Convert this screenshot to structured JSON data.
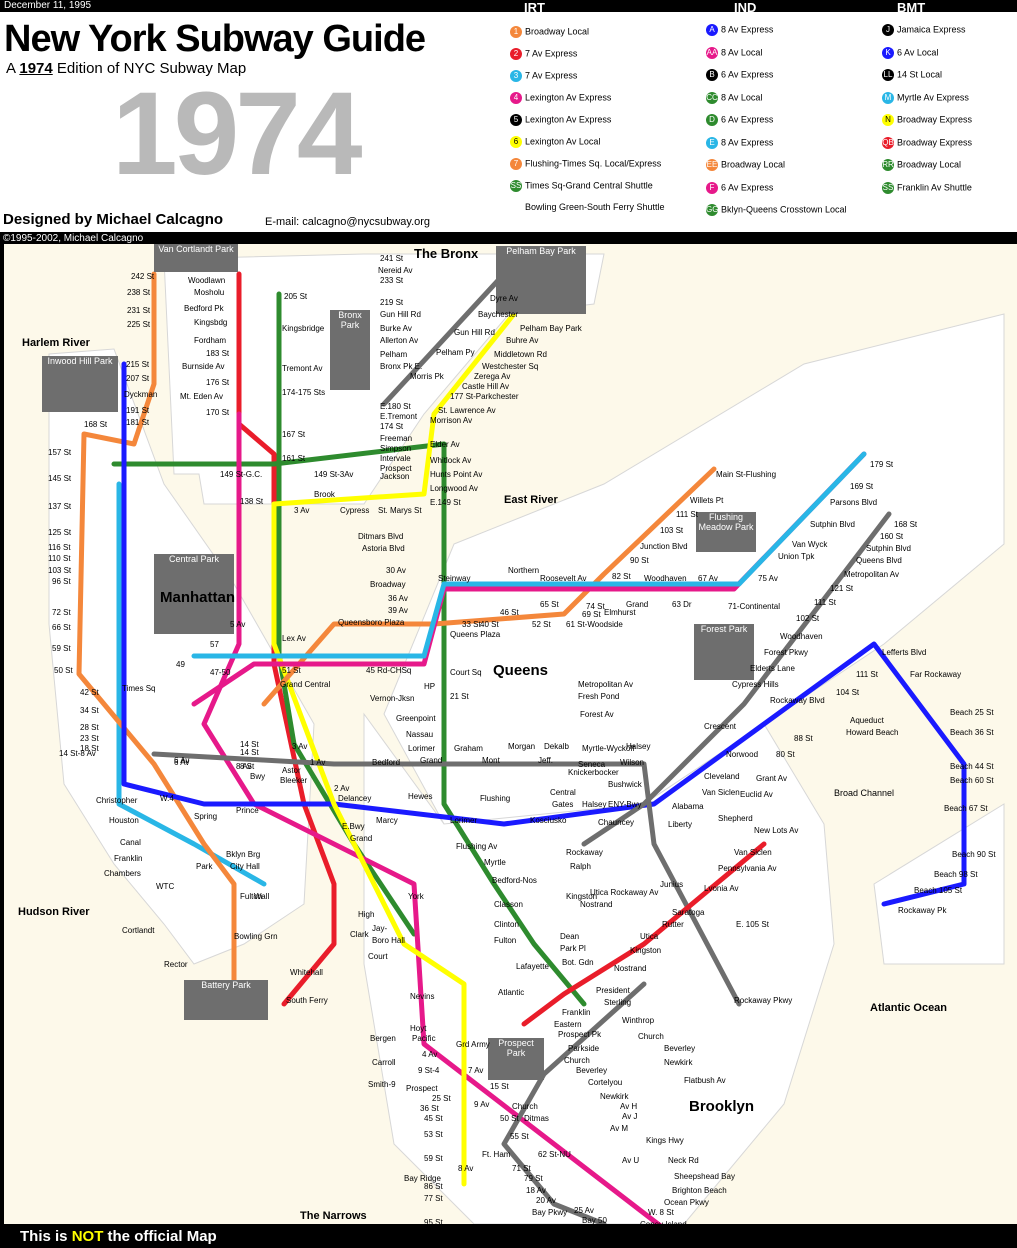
{
  "header": {
    "date": "December 11, 1995",
    "title": "New York Subway Guide",
    "subtitle_prefix": "A ",
    "subtitle_year": "1974",
    "subtitle_suffix": " Edition of NYC Subway Map",
    "big_year": "1974",
    "designed_by": "Designed by Michael Calcagno",
    "email": "E-mail: calcagno@nycsubway.org",
    "copyright": "©1995-2002, Michael Calcagno"
  },
  "legend": {
    "irt_head": "IRT",
    "ind_head": "IND",
    "bmt_head": "BMT",
    "irt": [
      {
        "badge": "1",
        "label": "Broadway Local",
        "color": "#f4873b"
      },
      {
        "badge": "2",
        "label": "7 Av Express",
        "color": "#e91d2a"
      },
      {
        "badge": "3",
        "label": "7 Av Express",
        "color": "#29b6e6"
      },
      {
        "badge": "4",
        "label": "Lexington Av Express",
        "color": "#e6198a"
      },
      {
        "badge": "5",
        "label": "Lexington Av Express",
        "color": "#000000"
      },
      {
        "badge": "6",
        "label": "Lexington Av Local",
        "color": "#ffff00"
      },
      {
        "badge": "7",
        "label": "Flushing-Times Sq. Local/Express",
        "color": "#f4873b"
      },
      {
        "badge": "SS",
        "label": "Times Sq-Grand Central Shuttle",
        "color": "#2e8b2e"
      },
      {
        "badge": "",
        "label": "Bowling Green-South Ferry Shuttle",
        "color": ""
      }
    ],
    "ind": [
      {
        "badge": "A",
        "label": "8 Av Express",
        "color": "#1a1aff"
      },
      {
        "badge": "AA",
        "label": "8 Av Local",
        "color": "#e6198a"
      },
      {
        "badge": "B",
        "label": "6 Av Express",
        "color": "#000000"
      },
      {
        "badge": "CC",
        "label": "8 Av Local",
        "color": "#2e8b2e"
      },
      {
        "badge": "D",
        "label": "6 Av Express",
        "color": "#2e8b2e"
      },
      {
        "badge": "E",
        "label": "8 Av Express",
        "color": "#29b6e6"
      },
      {
        "badge": "EE",
        "label": "Broadway Local",
        "color": "#f4873b"
      },
      {
        "badge": "F",
        "label": "6 Av Express",
        "color": "#e6198a"
      },
      {
        "badge": "GG",
        "label": "Bklyn-Queens Crosstown Local",
        "color": "#2e8b2e"
      }
    ],
    "bmt": [
      {
        "badge": "J",
        "label": "Jamaica Express",
        "color": "#000000"
      },
      {
        "badge": "K",
        "label": "6 Av Local",
        "color": "#1a1aff"
      },
      {
        "badge": "LL",
        "label": "14 St Local",
        "color": "#000000"
      },
      {
        "badge": "M",
        "label": "Myrtle Av Express",
        "color": "#29b6e6"
      },
      {
        "badge": "N",
        "label": "Broadway Express",
        "color": "#ffff00"
      },
      {
        "badge": "QB",
        "label": "Broadway Express",
        "color": "#e91d2a"
      },
      {
        "badge": "RR",
        "label": "Broadway Local",
        "color": "#2e8b2e"
      },
      {
        "badge": "SS",
        "label": "Franklin Av Shuttle",
        "color": "#2e8b2e"
      }
    ]
  },
  "map": {
    "regions": {
      "bronx": "The Bronx",
      "manhattan": "Manhattan",
      "queens": "Queens",
      "brooklyn": "Brooklyn"
    },
    "waters": {
      "harlem": "Harlem River",
      "hudson": "Hudson River",
      "east": "East River",
      "atlantic": "Atlantic Ocean",
      "narrows": "The Narrows",
      "broad_channel": "Broad Channel"
    },
    "parks": {
      "van_cortlandt": "Van Cortlandt Park",
      "pelham_bay": "Pelham Bay Park",
      "bronx": "Bronx Park",
      "inwood": "Inwood Hill Park",
      "central": "Central Park",
      "flushing_meadow": "Flushing Meadow Park",
      "forest": "Forest Park",
      "prospect": "Prospect Park",
      "battery": "Battery Park"
    },
    "stations": {
      "s242": "242 St",
      "s238": "238 St",
      "s231": "231 St",
      "s225": "225 St",
      "s215": "215 St",
      "s207": "207 St",
      "dyckman": "Dyckman",
      "s191": "191 St",
      "s181": "181 St",
      "s168": "168 St",
      "s157": "157 St",
      "s145": "145 St",
      "s137": "137 St",
      "s125": "125 St",
      "s116": "116 St",
      "s110": "110 St",
      "s103": "103 St",
      "s96": "96 St",
      "s86": "86 St",
      "s79": "79 St",
      "s72": "72 St",
      "s66": "66 St",
      "s59": "59 St",
      "s50": "50 St",
      "s42": "42 St",
      "s34": "34 St",
      "s28": "28 St",
      "s23": "23 St",
      "s18": "18 St",
      "s14_8": "14 St-8 Av",
      "christopher": "Christopher",
      "houston": "Houston",
      "canal": "Canal",
      "franklin": "Franklin",
      "chambers": "Chambers",
      "cortlandt": "Cortlandt",
      "rector": "Rector",
      "south_ferry": "South Ferry",
      "woodlawn": "Woodlawn",
      "mosholu": "Mosholu",
      "bedford_pk": "Bedford Pk",
      "kingsbdg": "Kingsbdg",
      "fordham": "Fordham",
      "s183": "183 St",
      "burnside": "Burnside Av",
      "s176": "176 St",
      "mt_eden": "Mt. Eden Av",
      "s170": "170 St",
      "s161": "161 St",
      "s149gc": "149 St-G.C.",
      "s138": "138 St",
      "s205": "205 St",
      "kingsbridge": "Kingsbridge",
      "tremont": "Tremont Av",
      "s174_175": "174-175 Sts",
      "s167": "167 St",
      "s241": "241 St",
      "nereid": "Nereid Av",
      "s233": "233 St",
      "s219": "219 St",
      "gun_hill": "Gun Hill Rd",
      "burke": "Burke Av",
      "allerton": "Allerton Av",
      "pelham": "Pelham",
      "bronx_pk_e": "Bronx Pk E.",
      "e180": "E.180 St",
      "e_tremont": "E.Tremont",
      "s174": "174 St",
      "freeman": "Freeman",
      "simpson": "Simpson",
      "intervale": "Intervale",
      "prospect_bx": "Prospect",
      "jackson": "Jackson",
      "s149_3av": "149 St-3Av",
      "brook": "Brook",
      "cypress": "Cypress",
      "st_marys": "St. Marys St",
      "dyre": "Dyre Av",
      "baychester": "Baychester",
      "gun_hill2": "Gun Hill Rd",
      "pelham_pky": "Pelham Py",
      "morris_pk": "Morris Pk",
      "pelham_bay_pk": "Pelham Bay Park",
      "buhre": "Buhre Av",
      "middletown": "Middletown Rd",
      "westchester_sq": "Westchester Sq",
      "zerega": "Zerega Av",
      "castle_hill": "Castle Hill Av",
      "s177_park": "177 St-Parkchester",
      "st_lawrence": "St. Lawrence Av",
      "morrison": "Morrison Av",
      "elder": "Elder Av",
      "whitlock": "Whitlock Av",
      "hunts_point": "Hunts Point Av",
      "longwood": "Longwood Av",
      "e149": "E.149 St",
      "s3av": "3 Av",
      "main_st": "Main St-Flushing",
      "willets": "Willets Pt",
      "s111": "111 St",
      "s103q": "103 St",
      "junction": "Junction Blvd",
      "s90": "90 St",
      "s82": "82 St",
      "s74": "74 St",
      "s69": "69 St",
      "s61": "61 St-Woodside",
      "s52": "52 St",
      "s46": "46 St",
      "s40": "40 St",
      "s33": "33 St",
      "queens_plaza": "Queens Plaza",
      "queensboro": "Queensboro Plaza",
      "s39av": "39 Av",
      "s36av": "36 Av",
      "broadway_q": "Broadway",
      "s30av": "30 Av",
      "astoria": "Astoria Blvd",
      "ditmars": "Ditmars Blvd",
      "steinway": "Steinway",
      "northern": "Northern",
      "roosevelt": "Roosevelt Av",
      "s65": "65 St",
      "grand_q": "Grand",
      "elmhurst": "Elmhurst",
      "woodhaven": "Woodhaven",
      "s63dr": "63 Dr",
      "s67av": "67 Av",
      "s71cont": "71-Continental",
      "s75av": "75 Av",
      "union_tpk": "Union Tpk",
      "van_wyck": "Van Wyck",
      "sutphin": "Sutphin Blvd",
      "parsons": "Parsons Blvd",
      "s169": "169 St",
      "s179": "179 St",
      "s168q": "168 St",
      "s160": "160 St",
      "sutphin2": "Sutphin Blvd",
      "queens_blvd": "Queens Blvd",
      "metropolitan_q": "Metropolitan Av",
      "s121": "121 St",
      "s111q": "111 St",
      "s102": "102 St",
      "woodhaven_j": "Woodhaven",
      "forest_pkwy": "Forest Pkwy",
      "elderts": "Elderts Lane",
      "cypress_hills": "Cypress Hills",
      "crescent": "Crescent",
      "norwood": "Norwood",
      "cleveland": "Cleveland",
      "van_siclen": "Van Siclen",
      "alabama": "Alabama",
      "court_sq": "Court Sq",
      "s21": "21 St",
      "hp": "HP",
      "vernon": "Vernon-Jksn",
      "s45rd": "45 Rd-CHSq",
      "greenpoint": "Greenpoint",
      "nassau": "Nassau",
      "lorimer": "Lorimer",
      "graham": "Graham",
      "grand_bk": "Grand",
      "bedford": "Bedford",
      "morgan": "Morgan",
      "montrose": "Mont",
      "dekalb": "Dekalb",
      "jefferson": "Jeff.",
      "myrtle": "Myrtle-Wyckoff",
      "halsey": "Halsey",
      "wilson": "Wilson",
      "bushwick": "Bushwick",
      "knickerbocker": "Knickerbocker",
      "central": "Central",
      "gates": "Gates",
      "halsey2": "Halsey",
      "eny": "ENY-Bwy",
      "lefferts": "Lefferts Blvd",
      "s111a": "111 St",
      "s104": "104 St",
      "rockaway_blvd": "Rockaway Blvd",
      "aqueduct": "Aqueduct",
      "howard_beach": "Howard Beach",
      "s88": "88 St",
      "s80": "80 St",
      "grant": "Grant Av",
      "euclid": "Euclid Av",
      "shepherd": "Shepherd",
      "liberty": "Liberty",
      "far_rockaway": "Far Rockaway",
      "b25": "Beach 25 St",
      "b36": "Beach 36 St",
      "b44": "Beach 44 St",
      "b60": "Beach 60 St",
      "b67": "Beach 67 St",
      "b90": "Beach 90 St",
      "b98": "Beach 98 St",
      "b105": "Beach 105 St",
      "rockaway_pk": "Rockaway Pk",
      "new_lots": "New Lots Av",
      "pennsylvania": "Pennsylvania Av",
      "van_siclen2": "Van Siclen",
      "livonia": "Lvonia Av",
      "junius": "Junius",
      "e105": "E. 105 St",
      "rockaway_pkwy": "Rockaway Pkwy",
      "saratoga": "Saratoga",
      "rutter": "Rutter",
      "utica": "Utica",
      "kingston": "Kingston",
      "nostrand": "Nostrand",
      "president": "President",
      "sterling": "Sterling",
      "winthrop": "Winthrop",
      "church": "Church",
      "beverley": "Beverley",
      "newkirk": "Newkirk",
      "flatbush": "Flatbush Av",
      "atlantic": "Atlantic",
      "franklin_bk": "Franklin",
      "eastern": "Eastern",
      "prospect_pk": "Prospect Pk",
      "parkside": "Parkside",
      "church2": "Church",
      "beverley2": "Beverley",
      "cortelyou": "Cortelyou",
      "newkirk2": "Newkirk",
      "av_h": "Av H",
      "av_j": "Av J",
      "av_m": "Av M",
      "kings_hwy": "Kings Hwy",
      "av_u": "Av U",
      "neck_rd": "Neck Rd",
      "sheepshead": "Sheepshead Bay",
      "brighton": "Brighton Beach",
      "ocean_pkwy": "Ocean Pkwy",
      "w8": "W. 8 St",
      "coney": "Coney Island",
      "bay_pkwy": "Bay Pkwy",
      "bay50": "Bay 50",
      "s25av": "25 Av",
      "s20av": "20 Av",
      "s18av": "18 Av",
      "s71": "71 St",
      "s62nu": "62 St-NU",
      "s55": "55 St",
      "s50bk": "50 St",
      "ft_ham": "Ft. Ham",
      "ditmas": "Ditmas",
      "s9av": "9 Av",
      "s8av": "8 Av",
      "s77": "77 St",
      "s95": "95 St",
      "bay_ridge": "Bay Ridge",
      "s59bk": "59 St",
      "s53": "53 St",
      "s45": "45 St",
      "s36": "36 St",
      "s25": "25 St",
      "prospect_av": "Prospect",
      "smith9": "Smith-9",
      "carroll": "Carroll",
      "bergen": "Bergen",
      "hoyt": "Hoyt",
      "nevins": "Nevins",
      "borough_hall": "Boro Hall",
      "court": "Court",
      "jay": "Jay-",
      "high": "High",
      "york": "York",
      "clark": "Clark",
      "wall": "Wall",
      "whitehall": "Whitehall",
      "bowling": "Bowling Grn",
      "fulton": "Fulton",
      "park": "Park",
      "city_hall": "City Hall",
      "bklyn_brg": "Bklyn Brg",
      "spring": "Spring",
      "prince": "Prince",
      "bleeker": "Bleeker",
      "astor": "Astor",
      "bwy": "Bwy",
      "s8st": "8 St",
      "union_sq": "14 St",
      "lex": "Lex Av",
      "grand_central": "Grand Central",
      "times_sq": "Times Sq",
      "s51": "51 St",
      "s47_50": "47-50",
      "s49": "49",
      "s57": "57",
      "s5av": "5 Av",
      "s6av": "6 Av",
      "delancey": "Delancey",
      "marcy": "Marcy",
      "hewes": "Hewes",
      "flushing_av": "Flushing Av",
      "kosciusko": "Kosciusko",
      "chauncey": "Chauncey",
      "bedford_nos": "Bedford-Nos",
      "classon": "Classon",
      "clinton": "Clinton",
      "fulton_bk": "Fulton",
      "lafayette": "Lafayette",
      "dean": "Dean",
      "park_pl": "Park Pl",
      "bot_gdn": "Bot. Gdn",
      "ralph": "Ralph",
      "rockaway_bk": "Rockaway",
      "utica_ra": "Utica Rockaway Av",
      "kingston2": "Kingston",
      "nostrand2": "Nostrand",
      "seneca": "Seneca",
      "forest_av": "Forest Av",
      "fresh_pond": "Fresh Pond",
      "metropolitan_m": "Metropolitan Av",
      "ebwy": "E.Bwy",
      "grand_e": "Grand",
      "lorimer2": "Lorimer",
      "myrtle2": "Myrtle",
      "flushing2": "Flushing",
      "s2av": "2 Av",
      "s1av": "1 Av",
      "s3av_m": "3 Av",
      "pacific": "Pacific",
      "grd_army": "Grd Army",
      "s7av": "7 Av",
      "s4av": "4 Av",
      "s9st4": "9 St-4",
      "s15": "15 St",
      "church_c": "Church",
      "s8av_m": "8 Av",
      "s6av_m": "6 Av",
      "wtc": "WTC",
      "w4": "W.4",
      "s14": "14 St"
    }
  },
  "footer": {
    "prefix": "This is ",
    "not": "NOT",
    "suffix": " the official Map"
  }
}
